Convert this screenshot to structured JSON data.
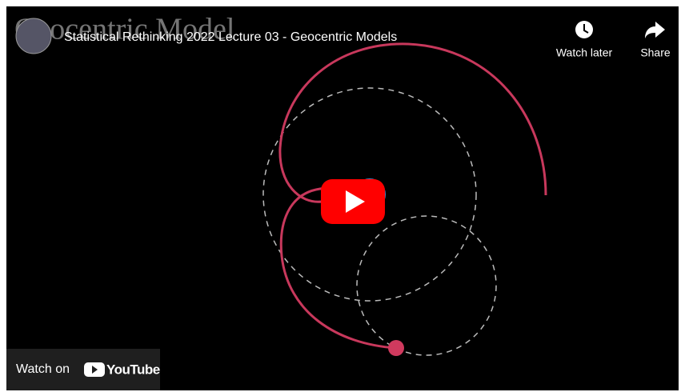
{
  "player": {
    "slide_heading": "Geocentric Model",
    "title": "Statistical Rethinking 2022 Lecture 03 - Geocentric Models",
    "watch_later": "Watch later",
    "share": "Share",
    "watch_on": "Watch on",
    "logo": "YouTube"
  }
}
